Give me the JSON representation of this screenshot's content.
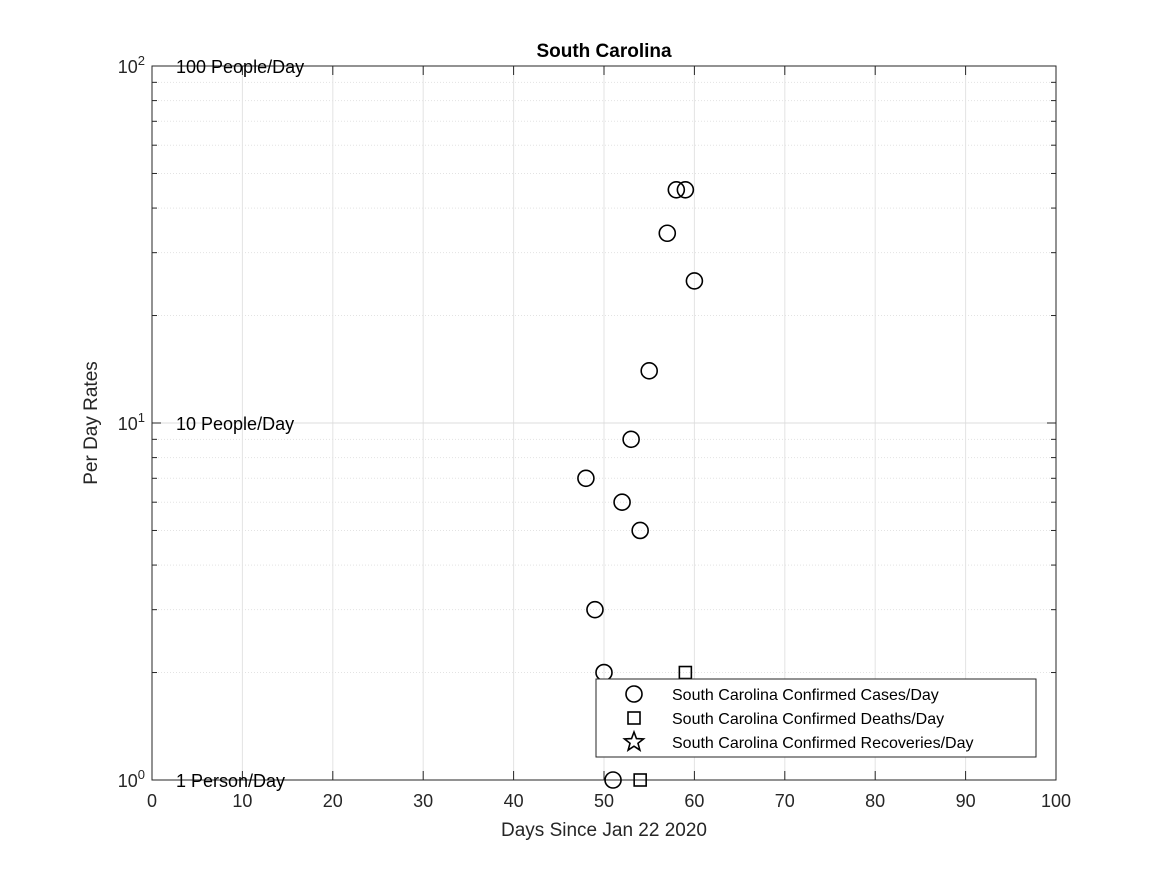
{
  "chart_data": {
    "type": "scatter",
    "title": "South Carolina",
    "xlabel": "Days Since Jan 22 2020",
    "ylabel": "Per Day Rates",
    "xlim": [
      0,
      100
    ],
    "ylim": [
      1,
      100
    ],
    "yscale": "log",
    "grid": true,
    "x_ticks": [
      "0",
      "10",
      "20",
      "30",
      "40",
      "50",
      "60",
      "70",
      "80",
      "90",
      "100"
    ],
    "y_ticks": [
      {
        "base": "10",
        "exp": "0"
      },
      {
        "base": "10",
        "exp": "1"
      },
      {
        "base": "10",
        "exp": "2"
      }
    ],
    "annotations": [
      "1 Person/Day",
      "10 People/Day",
      "100 People/Day"
    ],
    "legend_position": "bottom-right",
    "series": [
      {
        "name": "South Carolina Confirmed Cases/Day",
        "marker": "circle",
        "points": [
          [
            48,
            7
          ],
          [
            49,
            3
          ],
          [
            50,
            2
          ],
          [
            51,
            1
          ],
          [
            52,
            6
          ],
          [
            53,
            9
          ],
          [
            54,
            5
          ],
          [
            55,
            14
          ],
          [
            57,
            34
          ],
          [
            58,
            45
          ],
          [
            59,
            45
          ],
          [
            60,
            25
          ]
        ]
      },
      {
        "name": "South Carolina Confirmed Deaths/Day",
        "marker": "square",
        "points": [
          [
            54,
            1
          ],
          [
            59,
            2
          ]
        ]
      },
      {
        "name": "South Carolina Confirmed Recoveries/Day",
        "marker": "star",
        "points": []
      }
    ]
  }
}
